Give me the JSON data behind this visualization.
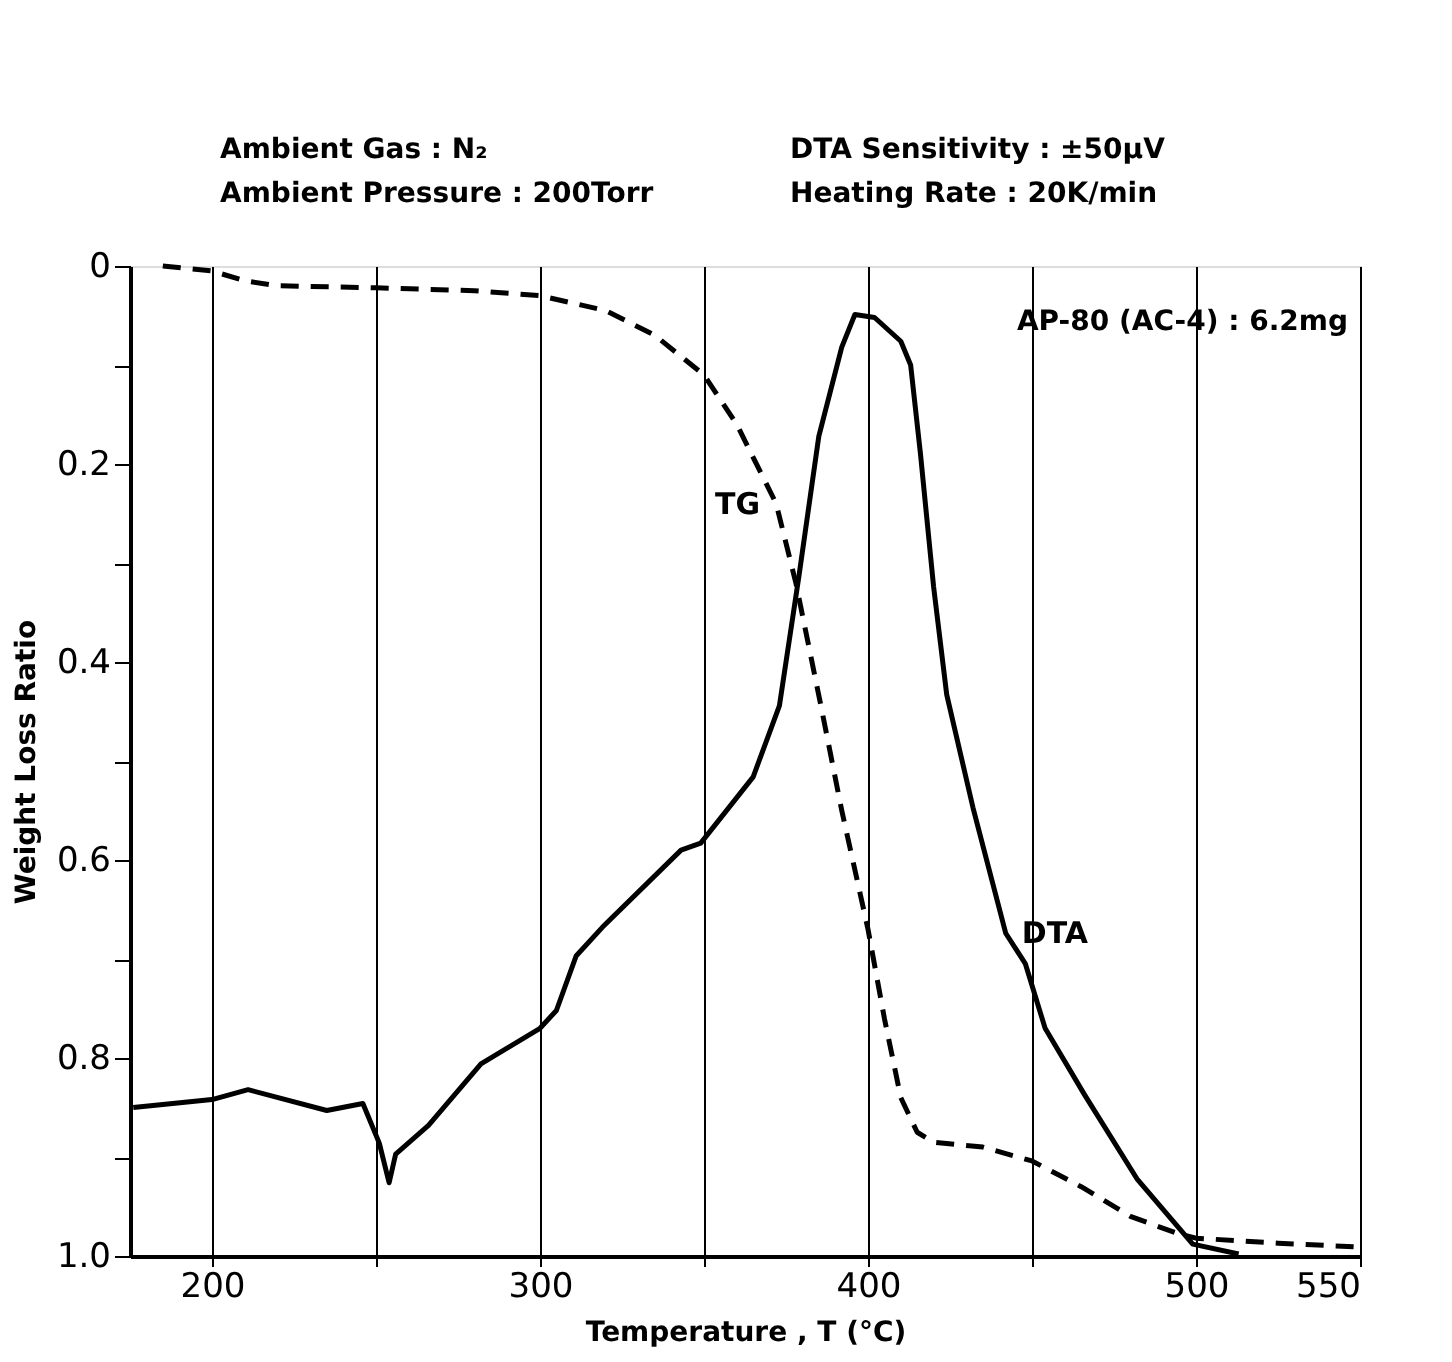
{
  "chart_data": {
    "type": "line",
    "xlabel": "Temperature , T (°C)",
    "ylabel": "Weight Loss Ratio",
    "annotations": [
      "Ambient Gas : N₂",
      "Ambient Pressure : 200Torr",
      "DTA Sensitivity : ±50μV",
      "Heating Rate : 20K/min",
      "AP-80 (AC-4) : 6.2mg"
    ],
    "xlim": [
      175,
      550
    ],
    "ylim": [
      1.0,
      0
    ],
    "xticks": [
      200,
      {
        "value": 250,
        "label": null
      },
      300,
      {
        "value": 350,
        "label": null
      },
      400,
      {
        "value": 450,
        "label": null
      },
      500,
      550
    ],
    "yticks": [
      0,
      {
        "value": 0.1,
        "label": null
      },
      0.2,
      {
        "value": 0.3,
        "label": null
      },
      0.4,
      {
        "value": 0.5,
        "label": null
      },
      0.6,
      {
        "value": 0.7,
        "label": null
      },
      0.8,
      {
        "value": 0.9,
        "label": null
      },
      {
        "value": 1.0,
        "label": "1.0"
      }
    ],
    "grid": "x",
    "marker": "none",
    "series": [
      {
        "name": "TG",
        "color": "#000000",
        "line_style": "dashed",
        "x": [
          185,
          200,
          210,
          220,
          250,
          280,
          300,
          320,
          335,
          350,
          360,
          372,
          378,
          386,
          392,
          400,
          405,
          410,
          415,
          420,
          435,
          450,
          465,
          480,
          495,
          500,
          525,
          550
        ],
        "values": [
          0.0,
          0.005,
          0.015,
          0.02,
          0.022,
          0.025,
          0.03,
          0.045,
          0.07,
          0.11,
          0.16,
          0.24,
          0.32,
          0.45,
          0.55,
          0.67,
          0.76,
          0.84,
          0.875,
          0.885,
          0.89,
          0.904,
          0.93,
          0.96,
          0.978,
          0.982,
          0.987,
          0.991
        ]
      },
      {
        "name": "DTA",
        "color": "#000000",
        "line_style": "solid",
        "x": [
          176,
          200,
          211,
          235,
          246,
          251,
          254,
          256,
          266,
          282,
          300,
          305,
          311,
          319,
          343,
          349,
          365,
          373,
          379,
          385,
          392,
          396,
          402,
          410,
          413,
          416,
          420,
          424,
          432,
          442,
          448,
          454,
          466,
          482,
          499,
          513
        ],
        "values": [
          0.85,
          0.842,
          0.832,
          0.853,
          0.846,
          0.886,
          0.926,
          0.897,
          0.868,
          0.806,
          0.77,
          0.752,
          0.697,
          0.668,
          0.59,
          0.583,
          0.516,
          0.444,
          0.312,
          0.172,
          0.082,
          0.049,
          0.052,
          0.076,
          0.1,
          0.19,
          0.324,
          0.433,
          0.547,
          0.674,
          0.705,
          0.77,
          0.837,
          0.922,
          0.988,
          0.998
        ]
      }
    ]
  }
}
